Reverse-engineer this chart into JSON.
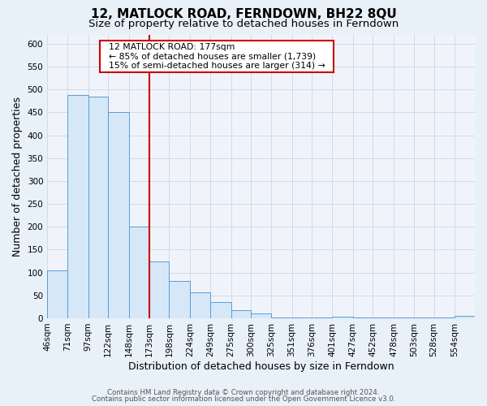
{
  "title": "12, MATLOCK ROAD, FERNDOWN, BH22 8QU",
  "subtitle": "Size of property relative to detached houses in Ferndown",
  "xlabel": "Distribution of detached houses by size in Ferndown",
  "ylabel": "Number of detached properties",
  "footer_line1": "Contains HM Land Registry data © Crown copyright and database right 2024.",
  "footer_line2": "Contains public sector information licensed under the Open Government Licence v3.0.",
  "annotation_title": "12 MATLOCK ROAD: 177sqm",
  "annotation_line1": "← 85% of detached houses are smaller (1,739)",
  "annotation_line2": "15% of semi-detached houses are larger (314) →",
  "bar_color": "#d6e8f7",
  "bar_edge_color": "#5b9bd5",
  "vline_color": "#cc0000",
  "vline_x_index": 5,
  "bin_edges": [
    46,
    71,
    97,
    122,
    148,
    173,
    198,
    224,
    249,
    275,
    300,
    325,
    351,
    376,
    401,
    427,
    452,
    478,
    503,
    528,
    554,
    579
  ],
  "values": [
    105,
    488,
    485,
    450,
    200,
    125,
    82,
    57,
    35,
    18,
    10,
    2,
    2,
    1,
    3,
    1,
    1,
    1,
    1,
    1,
    5
  ],
  "ylim": [
    0,
    620
  ],
  "yticks": [
    0,
    50,
    100,
    150,
    200,
    250,
    300,
    350,
    400,
    450,
    500,
    550,
    600
  ],
  "grid_color": "#c8d8e8",
  "bg_color": "#e8f0f8",
  "plot_bg_color": "#f0f4fa",
  "title_fontsize": 11,
  "subtitle_fontsize": 9.5,
  "label_fontsize": 9,
  "tick_fontsize": 7.5,
  "annotation_box_color": "#ffffff",
  "annotation_box_edge": "#cc0000",
  "footer_color": "#555555"
}
